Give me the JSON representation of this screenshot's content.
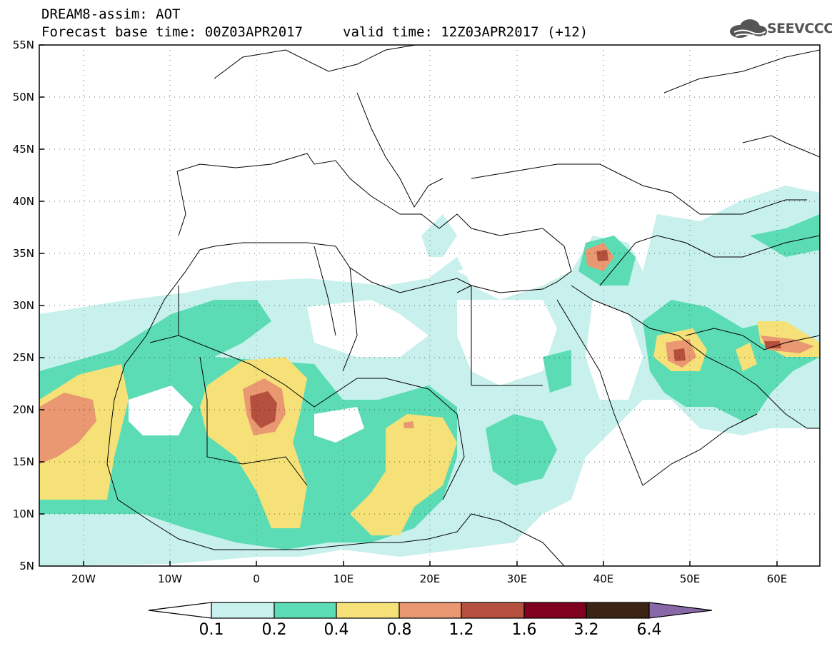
{
  "header": {
    "title_line1": "DREAM8-assim: AOT",
    "title_line2": "Forecast base time: 00Z03APR2017",
    "valid_time": "valid time: 12Z03APR2017 (+12)",
    "logo_text": "SEEVCCC",
    "logo_icon": "cloud-icon"
  },
  "map": {
    "lat_labels": [
      "55N",
      "50N",
      "45N",
      "40N",
      "35N",
      "30N",
      "25N",
      "20N",
      "15N",
      "10N",
      "5N"
    ],
    "lon_labels": [
      "20W",
      "10W",
      "0",
      "10E",
      "20E",
      "30E",
      "40E",
      "50E",
      "60E"
    ],
    "grid": "dotted"
  },
  "colorbar": {
    "levels": [
      "0.1",
      "0.2",
      "0.4",
      "0.8",
      "1.2",
      "1.6",
      "3.2",
      "6.4"
    ],
    "colors": [
      "#ffffff",
      "#c8f0ec",
      "#5cdcb4",
      "#f5e178",
      "#e99872",
      "#b6503e",
      "#800020",
      "#3c2414",
      "#8868a8"
    ]
  }
}
